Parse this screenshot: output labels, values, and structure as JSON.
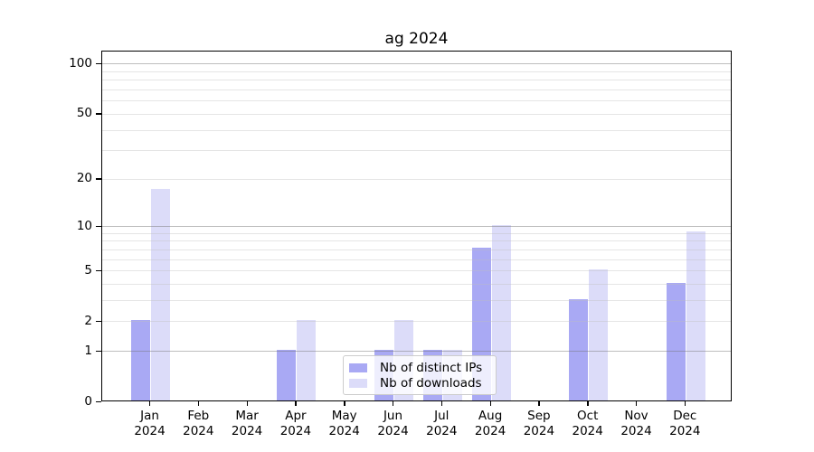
{
  "title": "ag 2024",
  "chart_data": {
    "type": "bar",
    "title": "ag 2024",
    "scale": "log1p",
    "xlabel": "",
    "ylabel": "",
    "ylim": [
      0,
      120
    ],
    "grid": true,
    "legend_position": "lower center",
    "categories": [
      "Jan 2024",
      "Feb 2024",
      "Mar 2024",
      "Apr 2024",
      "May 2024",
      "Jun 2024",
      "Jul 2024",
      "Aug 2024",
      "Sep 2024",
      "Oct 2024",
      "Nov 2024",
      "Dec 2024"
    ],
    "series": [
      {
        "name": "Nb of distinct IPs",
        "color": "#a9a9f4",
        "values": [
          2,
          0,
          0,
          1,
          0,
          1,
          1,
          7,
          0,
          3,
          0,
          4
        ]
      },
      {
        "name": "Nb of downloads",
        "color": "#dcdcf9",
        "values": [
          17,
          0,
          0,
          2,
          0,
          2,
          1,
          10,
          0,
          5,
          0,
          9
        ]
      }
    ],
    "yticks": [
      100,
      50,
      20,
      10,
      5,
      2,
      1,
      0
    ],
    "gridlines_major": [
      1,
      10,
      100
    ],
    "gridlines_minor": [
      2,
      3,
      4,
      5,
      6,
      7,
      8,
      9,
      20,
      30,
      40,
      50,
      60,
      70,
      80,
      90
    ]
  },
  "colors": {
    "grid_major": "rgba(110,110,110,0.45)",
    "grid_minor": "rgba(190,190,190,0.40)",
    "axis": "#000000"
  }
}
